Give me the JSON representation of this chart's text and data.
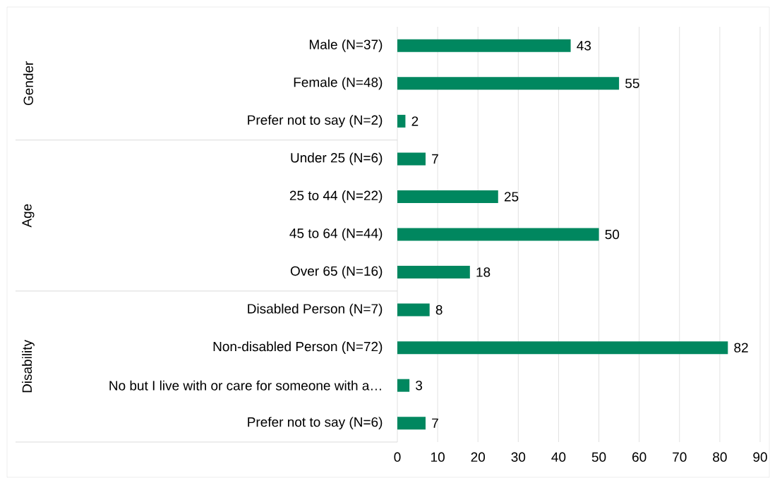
{
  "chart_data": {
    "type": "bar",
    "orientation": "horizontal",
    "categories": [
      "Male (N=37)",
      "Female (N=48)",
      "Prefer not to say (N=2)",
      "Under 25 (N=6)",
      "25 to 44 (N=22)",
      "45 to 64 (N=44)",
      "Over 65 (N=16)",
      "Disabled Person (N=7)",
      "Non-disabled Person (N=72)",
      "No but I live with or care for someone with a…",
      "Prefer not to say (N=6)"
    ],
    "values": [
      43,
      55,
      2,
      7,
      25,
      50,
      18,
      8,
      82,
      3,
      7
    ],
    "color": "#00875f",
    "xlim": [
      0,
      90
    ],
    "xticks": [
      0,
      10,
      20,
      30,
      40,
      50,
      60,
      70,
      80,
      90
    ],
    "grid": "x",
    "data_labels": true,
    "annotations": [
      "Gender",
      "Age",
      "Disability"
    ]
  }
}
